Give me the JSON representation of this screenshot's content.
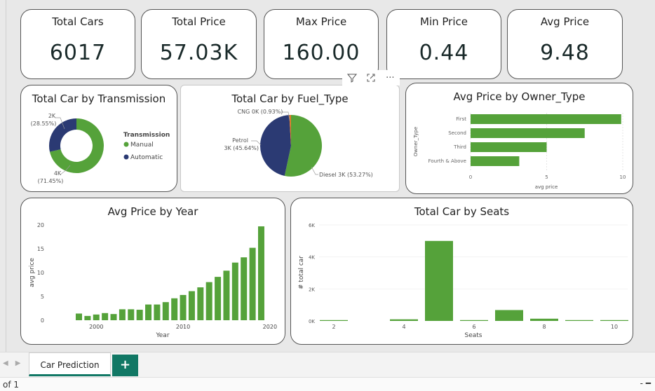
{
  "kpis": [
    {
      "title": "Total Cars",
      "value": "6017"
    },
    {
      "title": "Total Price",
      "value": "57.03K"
    },
    {
      "title": "Max Price",
      "value": "160.00"
    },
    {
      "title": "Min Price",
      "value": "0.44"
    },
    {
      "title": "Avg Price",
      "value": "9.48"
    }
  ],
  "transmission": {
    "title": "Total Car by Transmission",
    "legend_title": "Transmission",
    "legend_items": [
      "Manual",
      "Automatic"
    ],
    "label_automatic_1": "2K",
    "label_automatic_2": "(28.55%)",
    "label_manual_1": "4K",
    "label_manual_2": "(71.45%)"
  },
  "fuel": {
    "title": "Total Car by Fuel_Type",
    "label_cng": "CNG 0K (0.93%)",
    "label_petrol_1": "Petrol",
    "label_petrol_2": "3K (45.64%)",
    "label_diesel": "Diesel 3K (53.27%)"
  },
  "owner": {
    "title": "Avg Price by Owner_Type",
    "ylabel": "Owner_Type",
    "xlabel": "avg price",
    "categories": [
      "First",
      "Second",
      "Third",
      "Fourth & Above"
    ],
    "ticks": [
      "0",
      "5",
      "10"
    ]
  },
  "year": {
    "title": "Avg Price by Year",
    "ylabel": "avg price",
    "xlabel": "Year",
    "yticks": [
      "0",
      "5",
      "10",
      "15",
      "20"
    ],
    "xticks": [
      "2000",
      "2010",
      "2020"
    ]
  },
  "seats": {
    "title": "Total Car by Seats",
    "ylabel": "# total car",
    "xlabel": "Seats",
    "yticks": [
      "0K",
      "2K",
      "4K",
      "6K"
    ],
    "xticks": [
      "2",
      "4",
      "6",
      "8",
      "10"
    ]
  },
  "visual_header": {
    "filter_icon": "filter-icon",
    "focus_icon": "focus-mode-icon",
    "more_label": "···"
  },
  "tabs": {
    "page_label": "Car Prediction",
    "add_label": "+"
  },
  "nav": {
    "prev": "◀",
    "next": "▶"
  },
  "status": {
    "page_text": "of 1",
    "right": "- ━"
  },
  "colors": {
    "green": "#55a23a",
    "navy": "#2b3a73",
    "orange": "#e07b2a",
    "tab_green": "#117865"
  },
  "chart_data": [
    {
      "type": "pie",
      "title": "Total Car by Transmission",
      "categories": [
        "Manual",
        "Automatic"
      ],
      "values": [
        71.45,
        28.55
      ],
      "legend": "right"
    },
    {
      "type": "pie",
      "title": "Total Car by Fuel_Type",
      "categories": [
        "Diesel",
        "Petrol",
        "CNG"
      ],
      "values": [
        53.27,
        45.64,
        0.93
      ]
    },
    {
      "type": "bar",
      "title": "Avg Price by Owner_Type",
      "categories": [
        "First",
        "Second",
        "Third",
        "Fourth & Above"
      ],
      "values": [
        9.9,
        7.5,
        5.0,
        3.2
      ],
      "xlabel": "avg price",
      "ylabel": "Owner_Type",
      "xlim": [
        0,
        10
      ]
    },
    {
      "type": "bar",
      "title": "Avg Price by Year",
      "x": [
        1998,
        1999,
        2000,
        2001,
        2002,
        2003,
        2004,
        2005,
        2006,
        2007,
        2008,
        2009,
        2010,
        2011,
        2012,
        2013,
        2014,
        2015,
        2016,
        2017,
        2018,
        2019
      ],
      "values": [
        1.4,
        0.9,
        1.2,
        1.5,
        1.3,
        2.3,
        2.3,
        2.2,
        3.3,
        3.3,
        3.8,
        4.6,
        5.3,
        6.1,
        6.9,
        8.0,
        9.1,
        10.4,
        12.1,
        13.2,
        15.2,
        19.7
      ],
      "xlabel": "Year",
      "ylabel": "avg price",
      "ylim": [
        0,
        20
      ]
    },
    {
      "type": "bar",
      "title": "Total Car by Seats",
      "x": [
        2,
        4,
        5,
        6,
        7,
        8,
        9,
        10
      ],
      "values": [
        10,
        100,
        5000,
        30,
        680,
        140,
        4,
        5
      ],
      "xlabel": "Seats",
      "ylabel": "# total car",
      "ylim": [
        0,
        6000
      ]
    }
  ]
}
